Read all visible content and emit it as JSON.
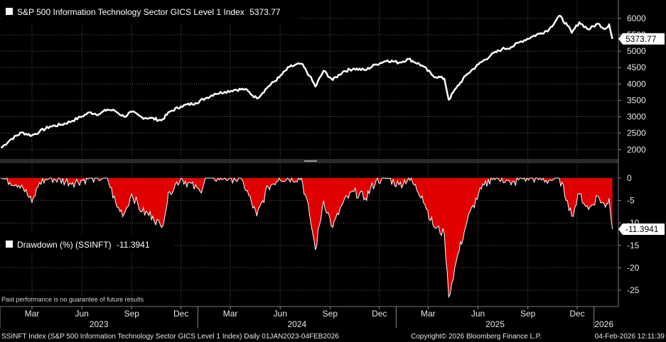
{
  "chart_data": [
    {
      "type": "line",
      "title": "S&P 500 Information Technology Sector GICS Level 1 Index",
      "legend_value": "5373.77",
      "last_value_label": "5373.77",
      "ylim": [
        1800,
        6300
      ],
      "yticks": [
        2000,
        2500,
        3000,
        3500,
        4000,
        4500,
        5000,
        5500,
        6000
      ],
      "grid": true,
      "line_color": "#ffffff",
      "points": [
        {
          "x": "2023-01-03",
          "y": 2050
        },
        {
          "x": "2023-01-20",
          "y": 2300
        },
        {
          "x": "2023-02-10",
          "y": 2520
        },
        {
          "x": "2023-03-01",
          "y": 2430
        },
        {
          "x": "2023-03-15",
          "y": 2550
        },
        {
          "x": "2023-04-03",
          "y": 2700
        },
        {
          "x": "2023-04-25",
          "y": 2760
        },
        {
          "x": "2023-05-15",
          "y": 2880
        },
        {
          "x": "2023-06-01",
          "y": 3010
        },
        {
          "x": "2023-06-15",
          "y": 3130
        },
        {
          "x": "2023-07-03",
          "y": 3080
        },
        {
          "x": "2023-07-18",
          "y": 3220
        },
        {
          "x": "2023-08-01",
          "y": 3180
        },
        {
          "x": "2023-08-18",
          "y": 3000
        },
        {
          "x": "2023-09-01",
          "y": 3150
        },
        {
          "x": "2023-09-20",
          "y": 2980
        },
        {
          "x": "2023-10-05",
          "y": 2960
        },
        {
          "x": "2023-10-26",
          "y": 2890
        },
        {
          "x": "2023-11-10",
          "y": 3150
        },
        {
          "x": "2023-12-01",
          "y": 3320
        },
        {
          "x": "2023-12-28",
          "y": 3420
        },
        {
          "x": "2024-01-15",
          "y": 3560
        },
        {
          "x": "2024-02-01",
          "y": 3700
        },
        {
          "x": "2024-02-20",
          "y": 3760
        },
        {
          "x": "2024-03-08",
          "y": 3820
        },
        {
          "x": "2024-03-28",
          "y": 3840
        },
        {
          "x": "2024-04-19",
          "y": 3560
        },
        {
          "x": "2024-05-10",
          "y": 3920
        },
        {
          "x": "2024-05-30",
          "y": 4200
        },
        {
          "x": "2024-06-18",
          "y": 4520
        },
        {
          "x": "2024-07-10",
          "y": 4620
        },
        {
          "x": "2024-07-25",
          "y": 4250
        },
        {
          "x": "2024-08-05",
          "y": 3920
        },
        {
          "x": "2024-08-20",
          "y": 4400
        },
        {
          "x": "2024-09-06",
          "y": 4120
        },
        {
          "x": "2024-09-25",
          "y": 4380
        },
        {
          "x": "2024-10-15",
          "y": 4470
        },
        {
          "x": "2024-11-05",
          "y": 4420
        },
        {
          "x": "2024-11-25",
          "y": 4600
        },
        {
          "x": "2024-12-16",
          "y": 4720
        },
        {
          "x": "2025-01-06",
          "y": 4650
        },
        {
          "x": "2025-01-24",
          "y": 4760
        },
        {
          "x": "2025-02-18",
          "y": 4560
        },
        {
          "x": "2025-03-10",
          "y": 4250
        },
        {
          "x": "2025-03-31",
          "y": 4160
        },
        {
          "x": "2025-04-08",
          "y": 3520
        },
        {
          "x": "2025-04-22",
          "y": 3880
        },
        {
          "x": "2025-05-12",
          "y": 4300
        },
        {
          "x": "2025-06-02",
          "y": 4600
        },
        {
          "x": "2025-06-25",
          "y": 4880
        },
        {
          "x": "2025-07-15",
          "y": 5060
        },
        {
          "x": "2025-08-01",
          "y": 5120
        },
        {
          "x": "2025-08-20",
          "y": 5300
        },
        {
          "x": "2025-09-10",
          "y": 5450
        },
        {
          "x": "2025-09-25",
          "y": 5550
        },
        {
          "x": "2025-10-10",
          "y": 5660
        },
        {
          "x": "2025-10-29",
          "y": 6080
        },
        {
          "x": "2025-11-13",
          "y": 5780
        },
        {
          "x": "2025-11-21",
          "y": 5560
        },
        {
          "x": "2025-12-05",
          "y": 5880
        },
        {
          "x": "2025-12-22",
          "y": 5660
        },
        {
          "x": "2026-01-08",
          "y": 5840
        },
        {
          "x": "2026-01-22",
          "y": 5680
        },
        {
          "x": "2026-01-29",
          "y": 5820
        },
        {
          "x": "2026-02-04",
          "y": 5373.77
        }
      ]
    },
    {
      "type": "area",
      "title": "Drawdown (%) (SSINFT)",
      "legend_value": "-11.3941",
      "last_value_label": "-11.3941",
      "ylim": [
        -28,
        3
      ],
      "yticks": [
        0,
        -5,
        -10,
        -15,
        -20,
        -25
      ],
      "grid": true,
      "fill_color": "#ff0000",
      "line_color": "#ffffff",
      "points": [
        {
          "x": "2023-01-03",
          "y": 0
        },
        {
          "x": "2023-02-10",
          "y": -1.5
        },
        {
          "x": "2023-03-01",
          "y": -5.5
        },
        {
          "x": "2023-03-15",
          "y": -1
        },
        {
          "x": "2023-04-03",
          "y": 0
        },
        {
          "x": "2023-05-15",
          "y": -1
        },
        {
          "x": "2023-06-15",
          "y": 0
        },
        {
          "x": "2023-07-18",
          "y": 0
        },
        {
          "x": "2023-08-05",
          "y": -6.5
        },
        {
          "x": "2023-08-18",
          "y": -8
        },
        {
          "x": "2023-09-01",
          "y": -3.5
        },
        {
          "x": "2023-09-20",
          "y": -7.5
        },
        {
          "x": "2023-10-10",
          "y": -8.5
        },
        {
          "x": "2023-10-26",
          "y": -11
        },
        {
          "x": "2023-11-10",
          "y": -3
        },
        {
          "x": "2023-12-01",
          "y": 0
        },
        {
          "x": "2024-01-05",
          "y": -3
        },
        {
          "x": "2024-01-15",
          "y": 0
        },
        {
          "x": "2024-02-20",
          "y": 0
        },
        {
          "x": "2024-03-08",
          "y": 0
        },
        {
          "x": "2024-03-25",
          "y": -1
        },
        {
          "x": "2024-04-19",
          "y": -8.5
        },
        {
          "x": "2024-05-10",
          "y": -2
        },
        {
          "x": "2024-05-30",
          "y": 0
        },
        {
          "x": "2024-07-10",
          "y": 0
        },
        {
          "x": "2024-07-25",
          "y": -8
        },
        {
          "x": "2024-08-05",
          "y": -16
        },
        {
          "x": "2024-08-20",
          "y": -5
        },
        {
          "x": "2024-09-06",
          "y": -11
        },
        {
          "x": "2024-09-25",
          "y": -5.5
        },
        {
          "x": "2024-10-15",
          "y": -3
        },
        {
          "x": "2024-11-05",
          "y": -4.5
        },
        {
          "x": "2024-11-25",
          "y": -0.5
        },
        {
          "x": "2024-12-16",
          "y": 0
        },
        {
          "x": "2025-01-06",
          "y": -1.5
        },
        {
          "x": "2025-01-24",
          "y": 0
        },
        {
          "x": "2025-02-18",
          "y": -4
        },
        {
          "x": "2025-03-10",
          "y": -10.5
        },
        {
          "x": "2025-03-31",
          "y": -12.5
        },
        {
          "x": "2025-04-08",
          "y": -26.5
        },
        {
          "x": "2025-04-22",
          "y": -18.5
        },
        {
          "x": "2025-05-12",
          "y": -9.5
        },
        {
          "x": "2025-06-02",
          "y": -3.5
        },
        {
          "x": "2025-06-25",
          "y": 0
        },
        {
          "x": "2025-07-15",
          "y": 0
        },
        {
          "x": "2025-08-01",
          "y": -1.5
        },
        {
          "x": "2025-08-20",
          "y": 0
        },
        {
          "x": "2025-09-10",
          "y": 0
        },
        {
          "x": "2025-10-10",
          "y": -0.5
        },
        {
          "x": "2025-10-29",
          "y": 0
        },
        {
          "x": "2025-11-13",
          "y": -5
        },
        {
          "x": "2025-11-21",
          "y": -8.5
        },
        {
          "x": "2025-12-05",
          "y": -3.5
        },
        {
          "x": "2025-12-22",
          "y": -7
        },
        {
          "x": "2026-01-08",
          "y": -4
        },
        {
          "x": "2026-01-22",
          "y": -6.5
        },
        {
          "x": "2026-01-29",
          "y": -4.5
        },
        {
          "x": "2026-02-04",
          "y": -11.3941
        }
      ]
    }
  ],
  "x_axis": {
    "xlim": [
      "2023-01-01",
      "2026-02-15"
    ],
    "month_ticks": [
      {
        "label": "Mar",
        "date": "2023-03-01"
      },
      {
        "label": "Jun",
        "date": "2023-06-01"
      },
      {
        "label": "Sep",
        "date": "2023-09-01"
      },
      {
        "label": "Dec",
        "date": "2023-12-01"
      },
      {
        "label": "Mar",
        "date": "2024-03-01"
      },
      {
        "label": "Jun",
        "date": "2024-06-01"
      },
      {
        "label": "Sep",
        "date": "2024-09-01"
      },
      {
        "label": "Dec",
        "date": "2024-12-01"
      },
      {
        "label": "Mar",
        "date": "2025-03-01"
      },
      {
        "label": "Jun",
        "date": "2025-06-01"
      },
      {
        "label": "Sep",
        "date": "2025-09-01"
      },
      {
        "label": "Dec",
        "date": "2025-12-01"
      }
    ],
    "year_ticks": [
      {
        "label": "2023",
        "date": "2023-01-01"
      },
      {
        "label": "2024",
        "date": "2024-01-01"
      },
      {
        "label": "2025",
        "date": "2025-01-01"
      },
      {
        "label": "2026",
        "date": "2026-01-01"
      }
    ]
  },
  "disclaimer": "Past performance is no guarantee of future results",
  "footer": {
    "left": "SSINFT Index (S&P 500 Information Technology Sector GICS Level 1 Index) Daily 01JAN2023-04FEB2026",
    "center": "Copyright© 2026 Bloomberg Finance L.P.",
    "right": "04-Feb-2026 12:11:39"
  }
}
